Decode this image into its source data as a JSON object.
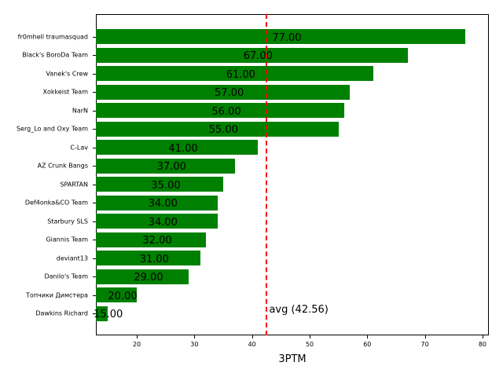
{
  "chart_data": {
    "type": "bar",
    "orientation": "horizontal",
    "title": "",
    "xlabel": "3PTM",
    "ylabel": "",
    "xlim": [
      12.9,
      81.1
    ],
    "xticks": [
      20,
      30,
      40,
      50,
      60,
      70,
      80
    ],
    "categories": [
      "fr0mhell traumasquad",
      "Black's BoroDa Team",
      "Vanek's Crew",
      "Xokkeist Team",
      "NarN",
      "Serg_Lo and Oxy Team",
      "C-Lav",
      "AZ Crunk Bangs",
      "SPARTAN",
      "Def4onka&CO Team",
      "Starbury SLS",
      "Giannis Team",
      "deviant13",
      "Danilo's Team",
      "Топчики Димстера",
      "Dawkins Richard"
    ],
    "values": [
      77,
      67,
      61,
      57,
      56,
      55,
      41,
      37,
      35,
      34,
      34,
      32,
      31,
      29,
      20,
      15
    ],
    "value_labels": [
      "77.00",
      "67.00",
      "61.00",
      "57.00",
      "56.00",
      "55.00",
      "41.00",
      "37.00",
      "35.00",
      "34.00",
      "34.00",
      "32.00",
      "31.00",
      "29.00",
      "20.00",
      "15.00"
    ],
    "bar_color": "#008000",
    "average": {
      "value": 42.56,
      "label": "avg (42.56)",
      "color": "#ff0000",
      "style": "dashed"
    },
    "grid": false,
    "legend": null
  }
}
